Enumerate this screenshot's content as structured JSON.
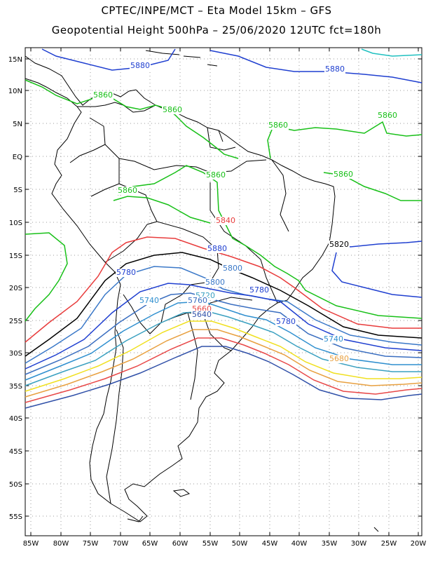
{
  "title_line1": "CPTEC/INPE/MCT –  Eta Model 15km – GFS",
  "title_line2": "Geopotential Height 500hPa – 25/06/2020 12UTC fct=180h",
  "lat_labels": [
    "15N",
    "10N",
    "5N",
    "EQ",
    "5S",
    "10S",
    "15S",
    "20S",
    "25S",
    "30S",
    "35S",
    "40S",
    "45S",
    "50S",
    "55S"
  ],
  "lon_labels": [
    "85W",
    "80W",
    "75W",
    "70W",
    "65W",
    "60W",
    "55W",
    "50W",
    "45W",
    "40W",
    "35W",
    "30W",
    "25W",
    "20W"
  ],
  "colors": {
    "c5880": "#1f3fd0",
    "c5860": "#18c018",
    "c5840": "#e83c3c",
    "c5820": "#000000",
    "c5800": "#3a78c8",
    "c5780": "#1f3fd0",
    "c5760": "#3a6ec0",
    "c5740": "#2f8fcf",
    "c5720": "#3aa0c0",
    "c5700": "#f0e020",
    "c5680": "#e8a040",
    "c5660": "#e84848",
    "c5640": "#3050a8",
    "c5620": "#101060",
    "c5900": "#20c0c0",
    "coast": "#000000"
  },
  "contour_labels": [
    {
      "text": "5880",
      "color": "c5880"
    },
    {
      "text": "5880",
      "color": "c5880"
    },
    {
      "text": "5860",
      "color": "c5860"
    },
    {
      "text": "5860",
      "color": "c5860"
    },
    {
      "text": "5860",
      "color": "c5860"
    },
    {
      "text": "5860",
      "color": "c5860"
    },
    {
      "text": "5860",
      "color": "c5860"
    },
    {
      "text": "5860",
      "color": "c5860"
    },
    {
      "text": "5860",
      "color": "c5860"
    },
    {
      "text": "5840",
      "color": "c5840"
    },
    {
      "text": "5880",
      "color": "c5880"
    },
    {
      "text": "5820",
      "color": "c5820"
    },
    {
      "text": "5800",
      "color": "c5800"
    },
    {
      "text": "5780",
      "color": "c5780"
    },
    {
      "text": "5800",
      "color": "c5800"
    },
    {
      "text": "5780",
      "color": "c5780"
    },
    {
      "text": "5740",
      "color": "c5740"
    },
    {
      "text": "5720",
      "color": "c5720"
    },
    {
      "text": "5760",
      "color": "c5760"
    },
    {
      "text": "5780",
      "color": "c5780"
    },
    {
      "text": "5740",
      "color": "c5740"
    },
    {
      "text": "5680",
      "color": "c5680"
    },
    {
      "text": "5660",
      "color": "c5660"
    },
    {
      "text": "5640",
      "color": "c5640"
    }
  ]
}
